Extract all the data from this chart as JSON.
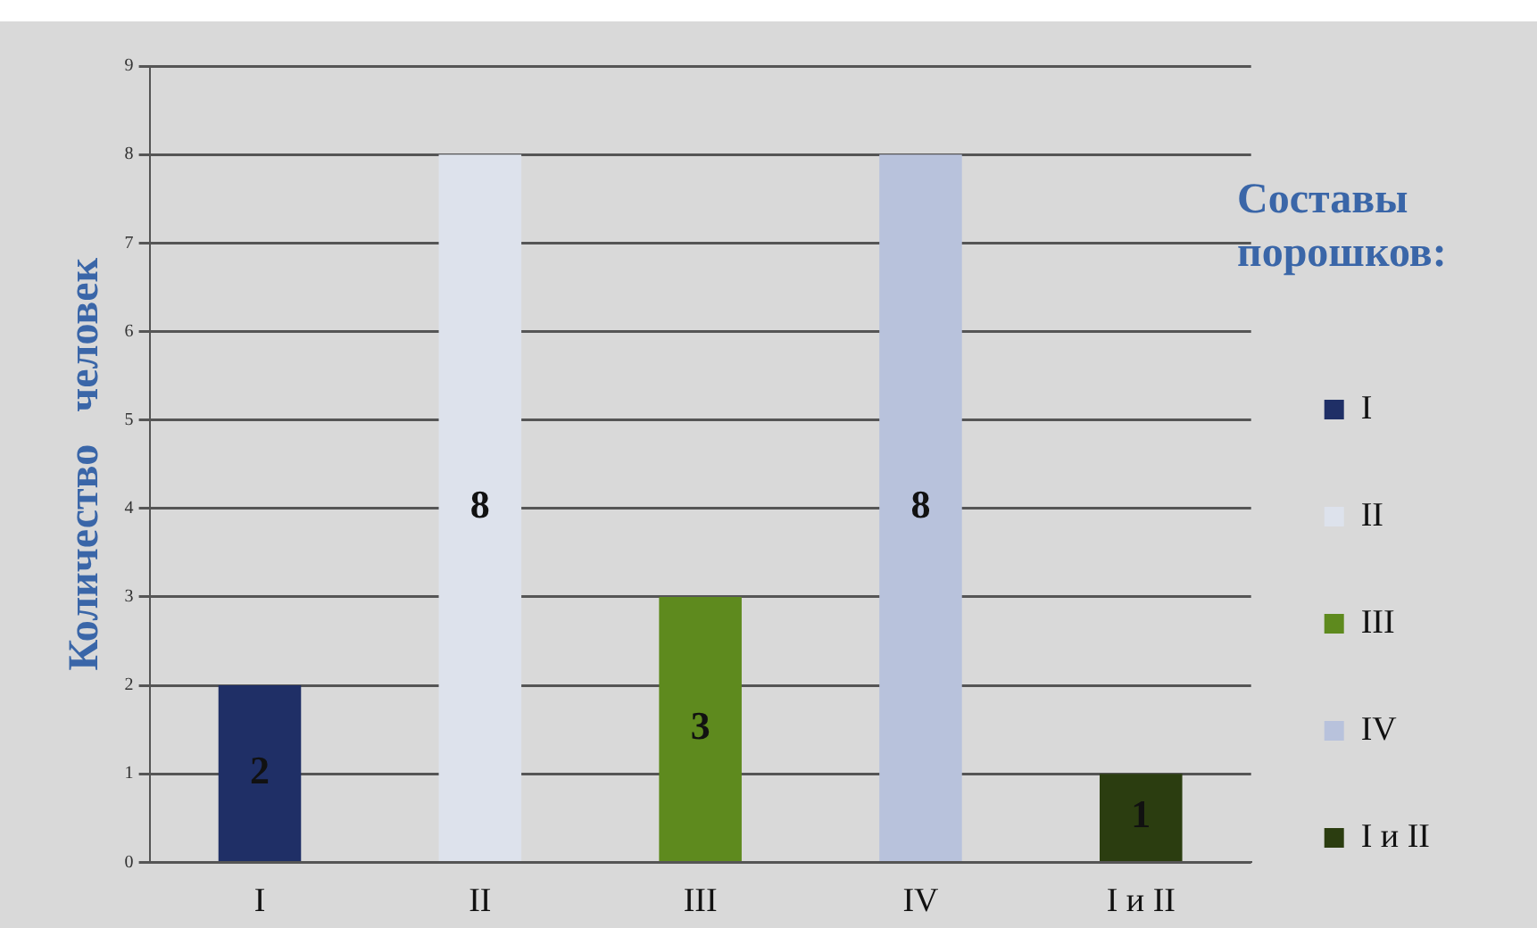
{
  "chart_data": {
    "type": "bar",
    "ylabel": "Количество   человек",
    "legend_title": "Составы порошков:",
    "categories": [
      "I",
      "II",
      "III",
      "IV",
      "I и II"
    ],
    "series": [
      {
        "name": "I",
        "color": "#1f2f66",
        "values": [
          2,
          null,
          null,
          null,
          null
        ]
      },
      {
        "name": "II",
        "color": "#dde2ec",
        "values": [
          null,
          8,
          null,
          null,
          null
        ]
      },
      {
        "name": "III",
        "color": "#5e8a1e",
        "values": [
          null,
          null,
          3,
          null,
          null
        ]
      },
      {
        "name": "IV",
        "color": "#b8c2dc",
        "values": [
          null,
          null,
          null,
          8,
          null
        ]
      },
      {
        "name": "I и II",
        "color": "#2b3d10",
        "values": [
          null,
          null,
          null,
          null,
          1
        ]
      }
    ],
    "ylim": [
      0,
      9
    ],
    "yticks": [
      0,
      1,
      2,
      3,
      4,
      5,
      6,
      7,
      8,
      9
    ],
    "grid": "y",
    "legend": "right",
    "data_labels": true
  }
}
